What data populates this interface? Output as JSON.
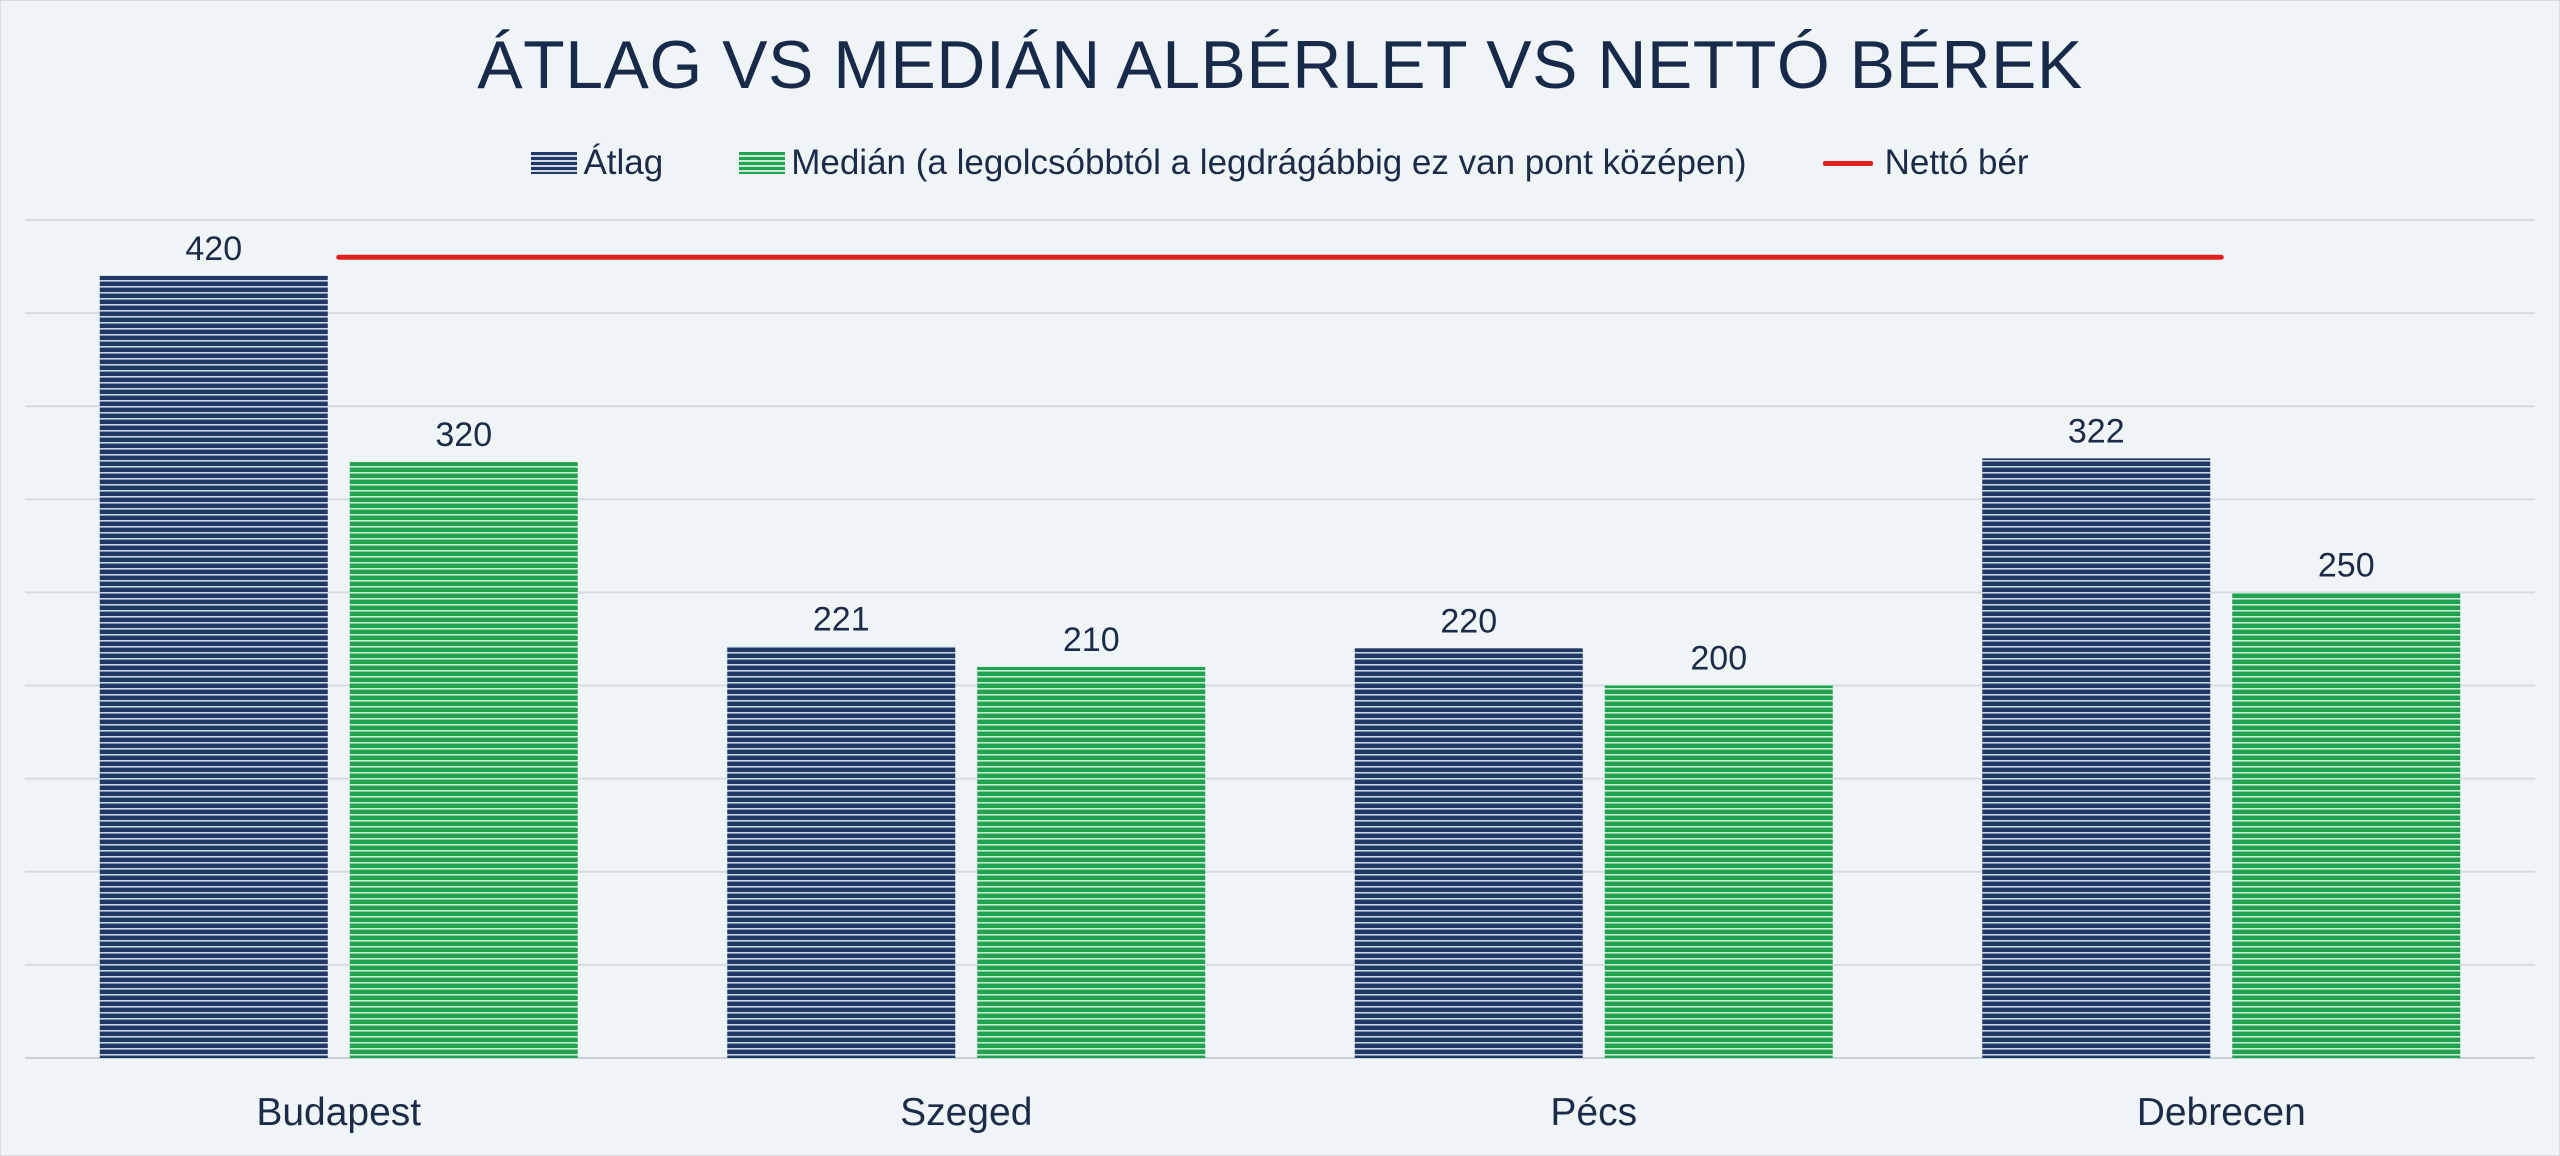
{
  "chart_data": {
    "type": "bar",
    "title": "ÁTLAG VS MEDIÁN ALBÉRLET VS NETTÓ BÉREK",
    "categories": [
      "Budapest",
      "Szeged",
      "Pécs",
      "Debrecen"
    ],
    "series": [
      {
        "name": "Átlag",
        "values": [
          420,
          221,
          220,
          322
        ],
        "color": "#1f3864"
      },
      {
        "name": "Medián (a legolcsóbbtól a legdrágábbig ez van pont középen)",
        "values": [
          320,
          210,
          200,
          250
        ],
        "color": "#21a250"
      }
    ],
    "line_series": {
      "name": "Nettó bér",
      "value": 430,
      "color": "#e02020"
    },
    "ylim": [
      0,
      450
    ],
    "gridline_step": 50,
    "grid": true,
    "legend_position": "top",
    "xlabel": "",
    "ylabel": ""
  }
}
